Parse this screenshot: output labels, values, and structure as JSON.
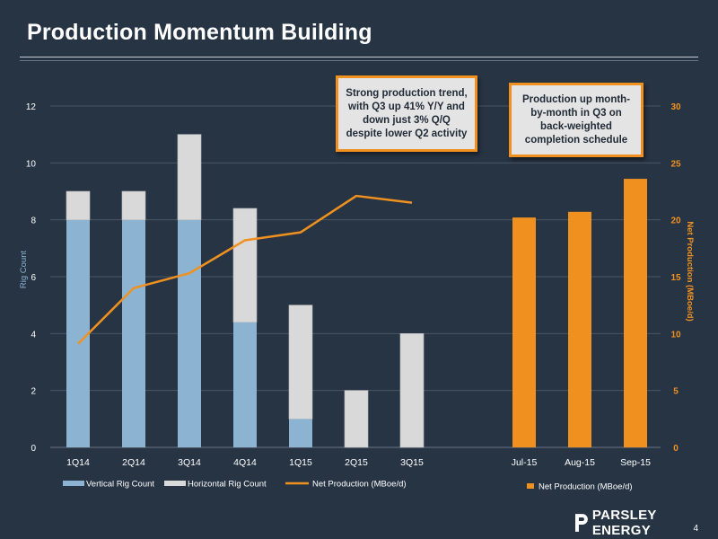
{
  "title": "Production Momentum Building",
  "page_number": "4",
  "logo_text": "PARSLEY ENERGY",
  "callouts": [
    "Strong production trend, with Q3 up 41% Y/Y and down just 3% Q/Q despite lower Q2 activity",
    "Production up month-by-month in Q3 on back-weighted completion schedule"
  ],
  "colors": {
    "vertical": "#8cb4d2",
    "horizontal": "#d9d9d9",
    "production": "#f0911f",
    "axis_text": "#ffffff",
    "left_axis_label": "#8cb4d2",
    "right_axis_label": "#f0911f",
    "gridline": "#4a5665"
  },
  "chart_data": {
    "type": "bar",
    "categories": [
      "1Q14",
      "2Q14",
      "3Q14",
      "4Q14",
      "1Q15",
      "2Q15",
      "3Q15",
      "Jul-15",
      "Aug-15",
      "Sep-15"
    ],
    "ylabel": "Rig Count",
    "ylim": [
      0,
      12
    ],
    "yticks": [
      0,
      2,
      4,
      6,
      8,
      10,
      12
    ],
    "y2label": "Net Production (MBoe/d)",
    "y2lim": [
      0,
      30
    ],
    "y2ticks": [
      0,
      5,
      10,
      15,
      20,
      25,
      30
    ],
    "grid": true,
    "legend": [
      {
        "name": "Vertical Rig Count",
        "marker": "bar",
        "color": "#8cb4d2"
      },
      {
        "name": "Horizontal Rig Count",
        "marker": "bar",
        "color": "#d9d9d9"
      },
      {
        "name": "Net Production (MBoe/d)",
        "marker": "line",
        "color": "#f0911f"
      },
      {
        "name": "Net Production (MBoe/d)",
        "marker": "bar",
        "color": "#f0911f"
      }
    ],
    "series": [
      {
        "name": "Vertical Rig Count",
        "type": "stacked-bar",
        "axis": "left",
        "values": [
          8,
          8,
          8,
          4.4,
          1,
          0,
          0,
          null,
          null,
          null
        ]
      },
      {
        "name": "Horizontal Rig Count",
        "type": "stacked-bar",
        "axis": "left",
        "values": [
          1,
          1,
          3,
          4,
          4,
          2,
          4,
          null,
          null,
          null
        ]
      },
      {
        "name": "Net Production (MBoe/d)",
        "type": "line",
        "axis": "right",
        "values": [
          9.1,
          14.0,
          15.3,
          18.2,
          18.9,
          22.1,
          21.5,
          null,
          null,
          null
        ]
      },
      {
        "name": "Net Production (MBoe/d)",
        "type": "bar",
        "axis": "right",
        "values": [
          null,
          null,
          null,
          null,
          null,
          null,
          null,
          20.2,
          20.7,
          23.6
        ]
      }
    ]
  }
}
